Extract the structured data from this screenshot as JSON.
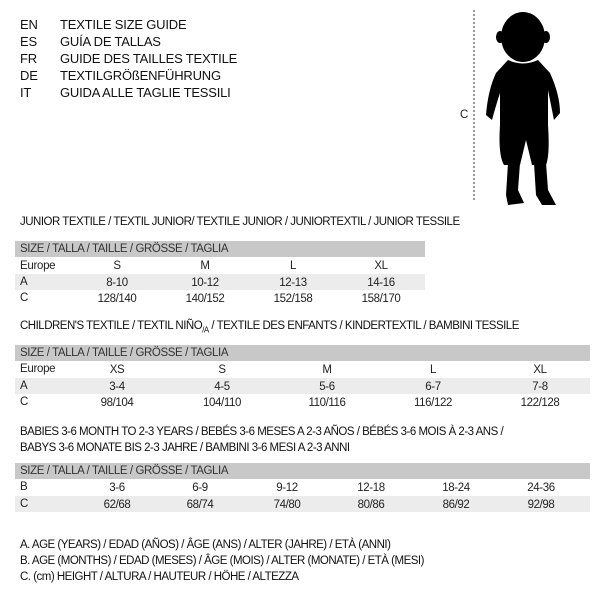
{
  "header": [
    {
      "code": "EN",
      "text": "TEXTILE SIZE GUIDE"
    },
    {
      "code": "ES",
      "text": "GUÍA DE TALLAS"
    },
    {
      "code": "FR",
      "text": "GUIDE DES TAILLES TEXTILE"
    },
    {
      "code": "DE",
      "text": "TEXTILGRÖßENFÜHRUNG"
    },
    {
      "code": "IT",
      "text": "GUIDA ALLE TAGLIE TESSILI"
    }
  ],
  "figure": {
    "measure_label": "C",
    "icon": "child-silhouette"
  },
  "size_header": "SIZE / TALLA / TAILLE / GRÖSSE / TAGLIA",
  "junior": {
    "title": "JUNIOR TEXTILE / TEXTIL JUNIOR/ TEXTILE JUNIOR / JUNIORTEXTIL / JUNIOR TESSILE",
    "rows": [
      {
        "label": "Europe",
        "values": [
          "S",
          "M",
          "L",
          "XL"
        ]
      },
      {
        "label": "A",
        "values": [
          "8-10",
          "10-12",
          "12-13",
          "14-16"
        ]
      },
      {
        "label": "C",
        "values": [
          "128/140",
          "140/152",
          "152/158",
          "158/170"
        ]
      }
    ]
  },
  "children": {
    "title": "CHILDREN'S TEXTILE / TEXTIL NIÑO",
    "title_sub": "/A",
    "title_rest": " / TEXTILE DES ENFANTS / KINDERTEXTIL / BAMBINI TESSILE",
    "rows": [
      {
        "label": "Europe",
        "values": [
          "XS",
          "S",
          "M",
          "L",
          "XL"
        ]
      },
      {
        "label": "A",
        "values": [
          "3-4",
          "4-5",
          "5-6",
          "6-7",
          "7-8"
        ]
      },
      {
        "label": "C",
        "values": [
          "98/104",
          "104/110",
          "110/116",
          "116/122",
          "122/128"
        ]
      }
    ]
  },
  "babies": {
    "title_line1": "BABIES 3-6 MONTH TO 2-3 YEARS / BEBÉS 3-6 MESES A 2-3 AÑOS / BÉBÉS 3-6 MOIS À 2-3 ANS /",
    "title_line2": "BABYS 3-6 MONATE BIS 2-3 JAHRE / BAMBINI 3-6 MESI A 2-3 ANNI",
    "rows": [
      {
        "label": "B",
        "values": [
          "3-6",
          "6-9",
          "9-12",
          "12-18",
          "18-24",
          "24-36"
        ]
      },
      {
        "label": "C",
        "values": [
          "62/68",
          "68/74",
          "74/80",
          "80/86",
          "86/92",
          "92/98"
        ]
      }
    ]
  },
  "legend": [
    "A. AGE (YEARS) / EDAD (AÑOS) / ÂGE (ANS) / ALTER (JAHRE) / ETÀ (ANNI)",
    "B. AGE (MONTHS) / EDAD (MESES) / ÂGE (MOIS) / ALTER (MONATE) / ETÀ (MESI)",
    "C. (cm) HEIGHT / ALTURA / HAUTEUR / HÖHE / ALTEZZA"
  ]
}
